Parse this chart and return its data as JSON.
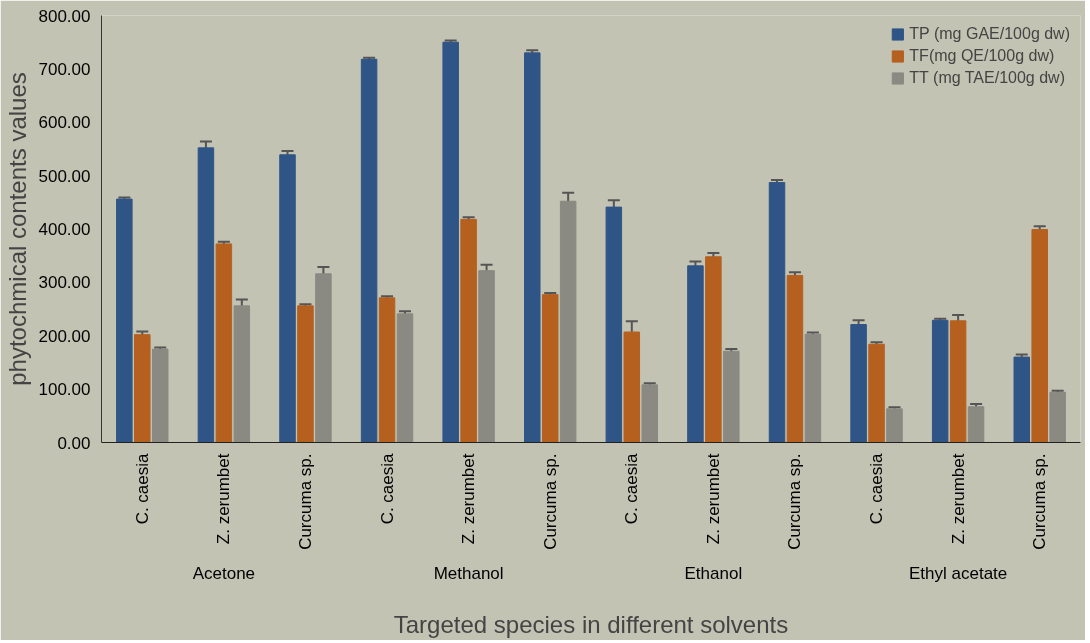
{
  "chart_data": {
    "type": "bar",
    "xlabel": "Targeted species in different solvents",
    "ylabel": "phytochmical contents values",
    "categories": [
      "C. caesia",
      "Z. zerumbet",
      "Curcuma sp.",
      "C. caesia",
      "Z. zerumbet",
      "Curcuma sp.",
      "C. caesia",
      "Z. zerumbet",
      "Curcuma sp.",
      "C. caesia",
      "Z. zerumbet",
      "Curcuma sp."
    ],
    "annotations": [
      "Acetone",
      "Methanol",
      "Ethanol",
      "Ethyl acetate"
    ],
    "series": [
      {
        "name": "TP (mg GAE/100g dw)",
        "color": "#2f5587",
        "values": [
          456,
          552,
          539,
          718,
          750,
          730,
          441,
          331,
          487,
          221,
          229,
          160
        ],
        "errors": [
          3,
          12,
          7,
          3,
          3,
          5,
          13,
          8,
          5,
          8,
          3,
          5
        ]
      },
      {
        "name": "TF(mg QE/100g dw)",
        "color": "#b5601f",
        "values": [
          202,
          372,
          256,
          271,
          418,
          277,
          207,
          348,
          313,
          184,
          228,
          399
        ],
        "errors": [
          6,
          4,
          3,
          3,
          4,
          3,
          20,
          7,
          6,
          4,
          11,
          6
        ]
      },
      {
        "name": "TT (mg TAE/100g dw)",
        "color": "#8a8a82",
        "values": [
          175,
          256,
          316,
          241,
          322,
          452,
          108,
          171,
          203,
          63,
          67,
          94
        ],
        "errors": [
          3,
          12,
          13,
          5,
          11,
          16,
          3,
          4,
          3,
          3,
          5,
          3
        ]
      }
    ],
    "ylim": [
      0,
      800
    ],
    "yticks": [
      {
        "value": 0,
        "label": "0.00"
      },
      {
        "value": 100,
        "label": "100.00"
      },
      {
        "value": 200,
        "label": "200.00"
      },
      {
        "value": 300,
        "label": "300.00"
      },
      {
        "value": 400,
        "label": "400.00"
      },
      {
        "value": 500,
        "label": "500.00"
      },
      {
        "value": 600,
        "label": "600.00"
      },
      {
        "value": 700,
        "label": "700.00"
      },
      {
        "value": 800,
        "label": "800.00"
      }
    ],
    "grid": false,
    "legend": "top right"
  }
}
